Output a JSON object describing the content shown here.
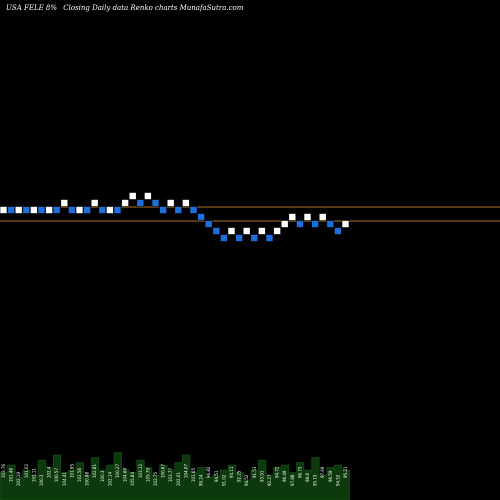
{
  "header": {
    "ticker": "USA FELE 8%",
    "subtitle": "Closing Daily data Renko charts MunafaSutra.com"
  },
  "colors": {
    "background": "#000000",
    "up_brick": "#ffffff",
    "down_brick": "#1e6fd9",
    "brick_outline": "#000000",
    "reference_line": "#b8722a",
    "volume_fill": "#0d3a0d",
    "label": "#ffffff"
  },
  "chart_data": {
    "type": "renko",
    "title": "USA FELE 8%",
    "reference_lines": [
      102.5,
      97.5
    ],
    "ylim": [
      86,
      110
    ],
    "bricks": [
      {
        "dir": "up",
        "top": 102.5,
        "label": "103.76"
      },
      {
        "dir": "down",
        "top": 102.5,
        "label": "101.46"
      },
      {
        "dir": "up",
        "top": 102.5,
        "label": "102.19"
      },
      {
        "dir": "down",
        "top": 102.5,
        "label": "101.02"
      },
      {
        "dir": "up",
        "top": 102.5,
        "label": "102.11"
      },
      {
        "dir": "down",
        "top": 102.5,
        "label": "100.3"
      },
      {
        "dir": "up",
        "top": 102.5,
        "label": "102.4"
      },
      {
        "dir": "down",
        "top": 102.5,
        "label": "100.57"
      },
      {
        "dir": "up",
        "top": 105.0,
        "label": "104.41"
      },
      {
        "dir": "down",
        "top": 102.5,
        "label": "101.95"
      },
      {
        "dir": "up",
        "top": 102.5,
        "label": "102.56"
      },
      {
        "dir": "down",
        "top": 102.5,
        "label": "100.88"
      },
      {
        "dir": "up",
        "top": 105.0,
        "label": "102.81"
      },
      {
        "dir": "down",
        "top": 102.5,
        "label": "100.3"
      },
      {
        "dir": "up",
        "top": 102.5,
        "label": "102.14"
      },
      {
        "dir": "down",
        "top": 102.5,
        "label": "100.27"
      },
      {
        "dir": "up",
        "top": 105.0,
        "label": "104.68"
      },
      {
        "dir": "up",
        "top": 107.5,
        "label": "105.84"
      },
      {
        "dir": "down",
        "top": 105.0,
        "label": "103.12"
      },
      {
        "dir": "up",
        "top": 107.5,
        "label": "105.79"
      },
      {
        "dir": "down",
        "top": 105.0,
        "label": "102.75"
      },
      {
        "dir": "down",
        "top": 102.5,
        "label": "100.67"
      },
      {
        "dir": "up",
        "top": 105.0,
        "label": "103.77"
      },
      {
        "dir": "down",
        "top": 102.5,
        "label": "102.01"
      },
      {
        "dir": "up",
        "top": 105.0,
        "label": "104.07"
      },
      {
        "dir": "down",
        "top": 102.5,
        "label": "101.65"
      },
      {
        "dir": "down",
        "top": 100.0,
        "label": "99.24"
      },
      {
        "dir": "down",
        "top": 97.5,
        "label": "96.82"
      },
      {
        "dir": "down",
        "top": 95.0,
        "label": "94.51"
      },
      {
        "dir": "down",
        "top": 92.5,
        "label": "91.02"
      },
      {
        "dir": "up",
        "top": 95.0,
        "label": "94.11"
      },
      {
        "dir": "down",
        "top": 92.5,
        "label": "92.25"
      },
      {
        "dir": "up",
        "top": 95.0,
        "label": "94.52"
      },
      {
        "dir": "down",
        "top": 92.5,
        "label": "91.53"
      },
      {
        "dir": "up",
        "top": 95.0,
        "label": "93.91"
      },
      {
        "dir": "down",
        "top": 92.5,
        "label": "92.27"
      },
      {
        "dir": "up",
        "top": 95.0,
        "label": "94.72"
      },
      {
        "dir": "up",
        "top": 97.5,
        "label": "96.49"
      },
      {
        "dir": "up",
        "top": 100.0,
        "label": "97.88"
      },
      {
        "dir": "down",
        "top": 97.5,
        "label": "96.73"
      },
      {
        "dir": "up",
        "top": 100.0,
        "label": "98.8"
      },
      {
        "dir": "down",
        "top": 97.5,
        "label": "95.15"
      },
      {
        "dir": "up",
        "top": 100.0,
        "label": "97.69"
      },
      {
        "dir": "down",
        "top": 97.5,
        "label": "96.59"
      },
      {
        "dir": "down",
        "top": 95.0,
        "label": "94.52"
      },
      {
        "dir": "up",
        "top": 97.5,
        "label": "95.21"
      }
    ],
    "volume": [
      0.55,
      0.7,
      0.45,
      0.6,
      0.5,
      0.8,
      0.65,
      0.9,
      0.55,
      0.6,
      0.75,
      0.5,
      0.85,
      0.6,
      0.7,
      0.95,
      0.6,
      0.55,
      0.8,
      0.65,
      0.5,
      0.7,
      0.6,
      0.75,
      0.9,
      0.55,
      0.65,
      0.45,
      0.5,
      0.6,
      0.7,
      0.55,
      0.4,
      0.6,
      0.8,
      0.5,
      0.65,
      0.7,
      0.55,
      0.75,
      0.6,
      0.85,
      0.5,
      0.65,
      0.7,
      0.6
    ]
  }
}
